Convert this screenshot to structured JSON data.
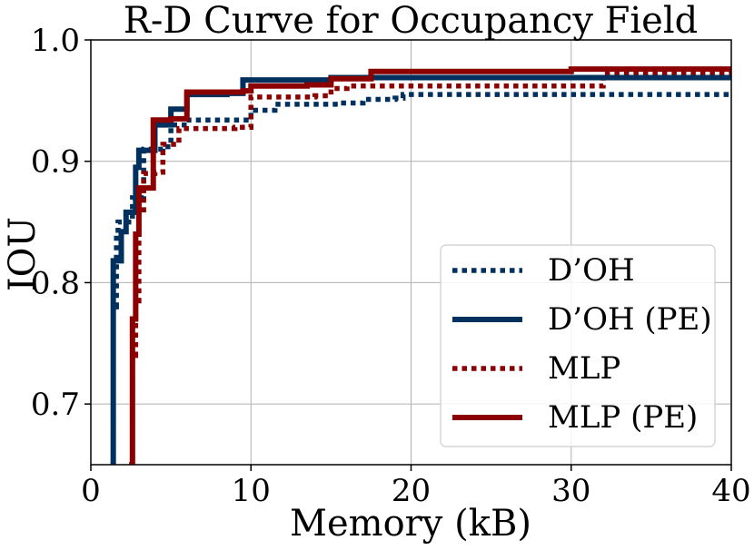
{
  "chart_data": {
    "type": "line",
    "title": "R-D Curve for Occupancy Field",
    "xlabel": "Memory (kB)",
    "ylabel": "IOU",
    "xlim": [
      0,
      40
    ],
    "ylim": [
      0.65,
      1.0
    ],
    "grid": true,
    "legend_position": "bottom-right",
    "xticks": [
      0,
      10,
      20,
      30,
      40
    ],
    "xtick_labels": [
      "0",
      "10",
      "20",
      "30",
      "40"
    ],
    "yticks": [
      0.7,
      0.8,
      0.9,
      1.0
    ],
    "ytick_labels": [
      "0.7",
      "0.8",
      "0.9",
      "1.0"
    ],
    "series": [
      {
        "name": "D’OH",
        "color": "#00305e",
        "style": "dotted",
        "points": [
          [
            1.3,
            0.65
          ],
          [
            1.4,
            0.78
          ],
          [
            1.6,
            0.84
          ],
          [
            1.7,
            0.85
          ],
          [
            2.5,
            0.85
          ],
          [
            2.6,
            0.87
          ],
          [
            3.0,
            0.87
          ],
          [
            3.3,
            0.91
          ],
          [
            4.5,
            0.912
          ],
          [
            5.0,
            0.93
          ],
          [
            6.0,
            0.934
          ],
          [
            9.0,
            0.934
          ],
          [
            10.0,
            0.942
          ],
          [
            11.5,
            0.947
          ],
          [
            15.5,
            0.948
          ],
          [
            17.0,
            0.951
          ],
          [
            19.0,
            0.952
          ],
          [
            19.5,
            0.955
          ],
          [
            40.0,
            0.955
          ]
        ]
      },
      {
        "name": "D’OH (PE)",
        "color": "#00305e",
        "style": "solid",
        "points": [
          [
            1.3,
            0.65
          ],
          [
            1.4,
            0.818
          ],
          [
            1.9,
            0.842
          ],
          [
            2.2,
            0.858
          ],
          [
            2.8,
            0.895
          ],
          [
            3.0,
            0.909
          ],
          [
            4.0,
            0.93
          ],
          [
            5.0,
            0.943
          ],
          [
            6.0,
            0.955
          ],
          [
            8.5,
            0.956
          ],
          [
            9.5,
            0.967
          ],
          [
            15.0,
            0.969
          ],
          [
            40.0,
            0.97
          ]
        ]
      },
      {
        "name": "MLP",
        "color": "#8b0000",
        "style": "dotted",
        "points": [
          [
            2.4,
            0.65
          ],
          [
            2.6,
            0.74
          ],
          [
            2.8,
            0.785
          ],
          [
            3.0,
            0.86
          ],
          [
            3.3,
            0.89
          ],
          [
            4.0,
            0.891
          ],
          [
            4.5,
            0.914
          ],
          [
            5.5,
            0.927
          ],
          [
            9.0,
            0.928
          ],
          [
            10.0,
            0.953
          ],
          [
            14.0,
            0.954
          ],
          [
            15.0,
            0.96
          ],
          [
            16.0,
            0.962
          ],
          [
            31.5,
            0.962
          ],
          [
            32.0,
            0.973
          ],
          [
            40.0,
            0.974
          ]
        ]
      },
      {
        "name": "MLP (PE)",
        "color": "#8b0000",
        "style": "solid",
        "points": [
          [
            2.4,
            0.65
          ],
          [
            2.6,
            0.77
          ],
          [
            2.8,
            0.84
          ],
          [
            3.0,
            0.878
          ],
          [
            3.8,
            0.878
          ],
          [
            3.9,
            0.934
          ],
          [
            5.0,
            0.935
          ],
          [
            6.0,
            0.957
          ],
          [
            9.5,
            0.958
          ],
          [
            10.0,
            0.962
          ],
          [
            13.5,
            0.963
          ],
          [
            15.0,
            0.968
          ],
          [
            17.5,
            0.974
          ],
          [
            23.0,
            0.974
          ],
          [
            30.0,
            0.976
          ],
          [
            40.0,
            0.978
          ]
        ]
      }
    ]
  }
}
